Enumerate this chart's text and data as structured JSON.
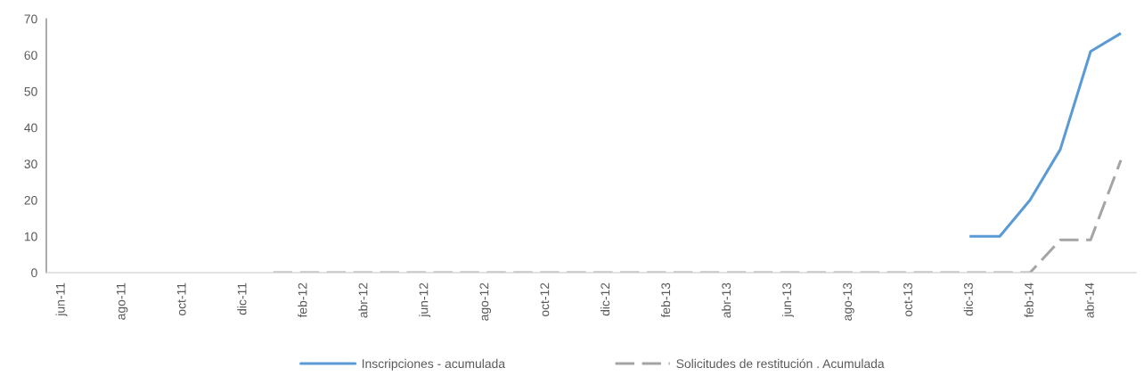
{
  "chart_data": {
    "type": "line",
    "categories": [
      "jun-11",
      null,
      "ago-11",
      null,
      "oct-11",
      null,
      "dic-11",
      null,
      "feb-12",
      null,
      "abr-12",
      null,
      "jun-12",
      null,
      "ago-12",
      null,
      "oct-12",
      null,
      "dic-12",
      null,
      "feb-13",
      null,
      "abr-13",
      null,
      "jun-13",
      null,
      "ago-13",
      null,
      "oct-13",
      null,
      "dic-13",
      null,
      "feb-14",
      null,
      "abr-14",
      null
    ],
    "series": [
      {
        "name": "Inscripciones - acumulada",
        "color": "#5b9bd5",
        "line_style": "solid",
        "values": [
          null,
          null,
          null,
          null,
          null,
          null,
          null,
          null,
          null,
          null,
          null,
          null,
          null,
          null,
          null,
          null,
          null,
          null,
          null,
          null,
          null,
          null,
          null,
          null,
          null,
          null,
          null,
          null,
          null,
          null,
          10,
          10,
          20,
          34,
          61,
          66
        ]
      },
      {
        "name": "Solicitudes de restitución . Acumulada",
        "color": "#a5a5a5",
        "line_style": "dashed",
        "values": [
          null,
          null,
          null,
          null,
          null,
          null,
          null,
          0,
          0,
          0,
          0,
          0,
          0,
          0,
          0,
          0,
          0,
          0,
          0,
          0,
          0,
          0,
          0,
          0,
          0,
          0,
          0,
          0,
          0,
          0,
          0,
          0,
          0,
          9,
          9,
          31
        ]
      }
    ],
    "ylim": [
      0,
      70
    ],
    "yticks": [
      0,
      10,
      20,
      30,
      40,
      50,
      60,
      70
    ],
    "grid": false,
    "legend": "bottom",
    "marker": "none"
  }
}
